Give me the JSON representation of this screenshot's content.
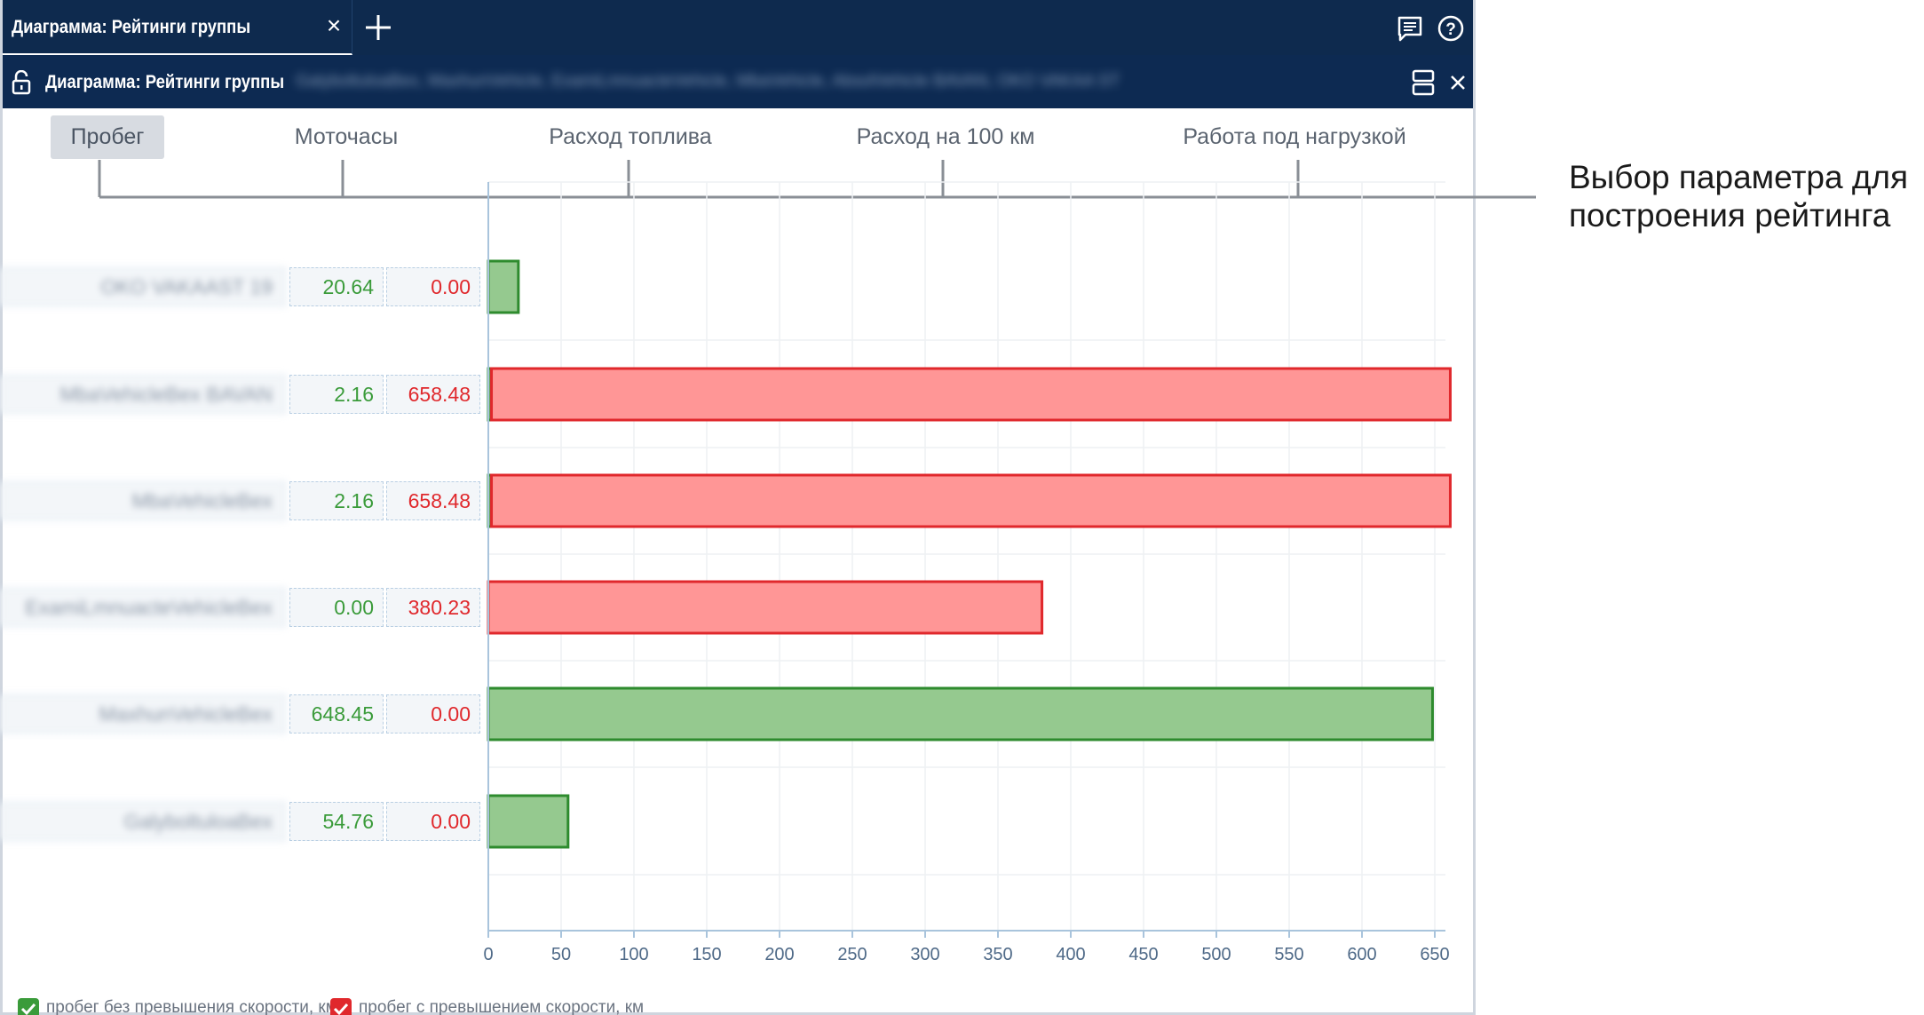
{
  "window": {
    "tab_title": "Диаграмма: Рейтинги группы",
    "tab_close": "×",
    "subtitle": "Диаграмма: Рейтинги группы",
    "subtitle_objects": "GalyboltuloaBex, MaxhunVehicle, ExamiLmnuacteVehicle, MbaVehicle, AbsolVehicle BAVAN, OKO VAKAA ST"
  },
  "icons": {
    "tab_add": "plus-icon",
    "notes": "notes-icon",
    "help": "help-icon",
    "lock": "unlock-icon",
    "layout": "layout-toggle-icon",
    "close": "close-icon"
  },
  "parameter_tabs": [
    {
      "label": "Пробег",
      "active": true
    },
    {
      "label": "Моточасы",
      "active": false
    },
    {
      "label": "Расход топлива",
      "active": false
    },
    {
      "label": "Расход на 100 км",
      "active": false
    },
    {
      "label": "Работа под нагрузкой",
      "active": false
    }
  ],
  "rows": [
    {
      "name": "OKO VAKAAST 19",
      "green": "20.64",
      "red": "0.00"
    },
    {
      "name": "MbaVehicleBex BAVAN",
      "green": "2.16",
      "red": "658.48"
    },
    {
      "name": "MbaVehicleBex",
      "green": "2.16",
      "red": "658.48"
    },
    {
      "name": "ExamiLmnuacteVehicleBex",
      "green": "0.00",
      "red": "380.23"
    },
    {
      "name": "MaxhunVehicleBex",
      "green": "648.45",
      "red": "0.00"
    },
    {
      "name": "GalyboltuloaBex",
      "green": "54.76",
      "red": "0.00"
    }
  ],
  "chart_data": {
    "type": "bar",
    "orientation": "horizontal",
    "stacked": true,
    "categories": [
      "OKO VAKAAST 19",
      "MbaVehicleBex BAVAN",
      "MbaVehicleBex",
      "ExamiLmnuacteVehicleBex",
      "MaxhunVehicleBex",
      "GalyboltuloaBex"
    ],
    "series": [
      {
        "name": "пробег без превышения скорости, км",
        "color": "#95c98f",
        "stroke": "#2e8b2e",
        "values": [
          20.64,
          2.16,
          2.16,
          0.0,
          648.45,
          54.76
        ]
      },
      {
        "name": "пробег с превышением скорости, км",
        "color": "#ff9696",
        "stroke": "#e0282c",
        "values": [
          0.0,
          658.48,
          658.48,
          380.23,
          0.0,
          0.0
        ]
      }
    ],
    "xlim": [
      0,
      670
    ],
    "xticks": [
      "0",
      "50",
      "100",
      "150",
      "200",
      "250",
      "300",
      "350",
      "400",
      "450",
      "500",
      "550",
      "600",
      "650"
    ],
    "grid": true,
    "legend_position": "bottom-left"
  },
  "legend": [
    {
      "label": "пробег без превышения скорости, км",
      "color": "#3a9b3a"
    },
    {
      "label": "пробег с превышением скорости, км",
      "color": "#e0282c"
    }
  ],
  "callout": {
    "line1": "Выбор параметра для",
    "line2": "построения рейтинга"
  }
}
